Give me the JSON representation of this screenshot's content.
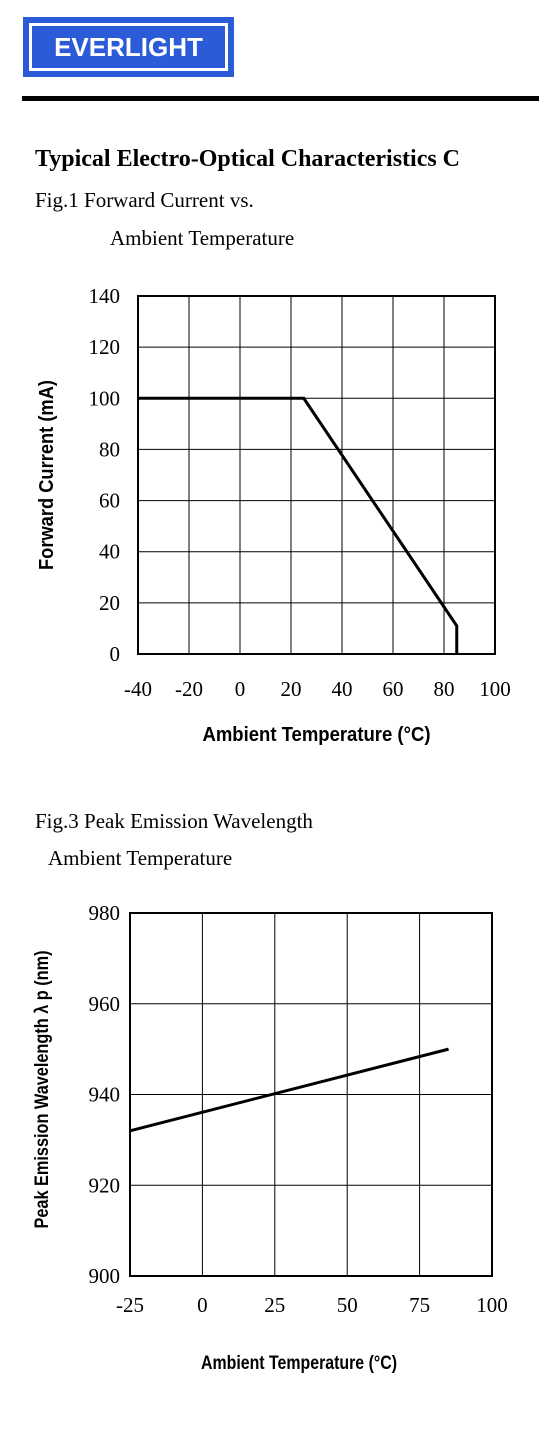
{
  "header": {
    "logo_text": "EVERLIGHT",
    "logo_color": "#2b5bd7",
    "section_title": "Typical Electro-Optical Characteristics C"
  },
  "fig1": {
    "caption_line1": "Fig.1 Forward Current vs.",
    "caption_line2": "Ambient Temperature"
  },
  "fig3": {
    "caption_line1": "Fig.3    Peak Emission Wavelength",
    "caption_line2": "Ambient Temperature"
  },
  "chart_data": [
    {
      "type": "line",
      "title": "",
      "xlabel": "Ambient Temperature (°C)",
      "ylabel": "Forward Current (mA)",
      "xlim": [
        -40,
        100
      ],
      "ylim": [
        0,
        140
      ],
      "x_ticks": [
        -40,
        -20,
        0,
        20,
        40,
        60,
        80,
        100
      ],
      "y_ticks": [
        0,
        20,
        40,
        60,
        80,
        100,
        120,
        140
      ],
      "grid": true,
      "series": [
        {
          "x": [
            -40,
            25,
            85,
            85
          ],
          "y": [
            100,
            100,
            11,
            0
          ]
        }
      ]
    },
    {
      "type": "line",
      "title": "",
      "xlabel": "Ambient Temperature (°C)",
      "ylabel": "Peak Emission Wavelength  λ p (nm)",
      "xlim": [
        -25,
        100
      ],
      "ylim": [
        900,
        980
      ],
      "x_ticks": [
        -25,
        0,
        25,
        50,
        75,
        100
      ],
      "y_ticks": [
        900,
        920,
        940,
        960,
        980
      ],
      "grid": true,
      "series": [
        {
          "x": [
            -25,
            85
          ],
          "y": [
            932,
            950
          ]
        }
      ]
    }
  ]
}
